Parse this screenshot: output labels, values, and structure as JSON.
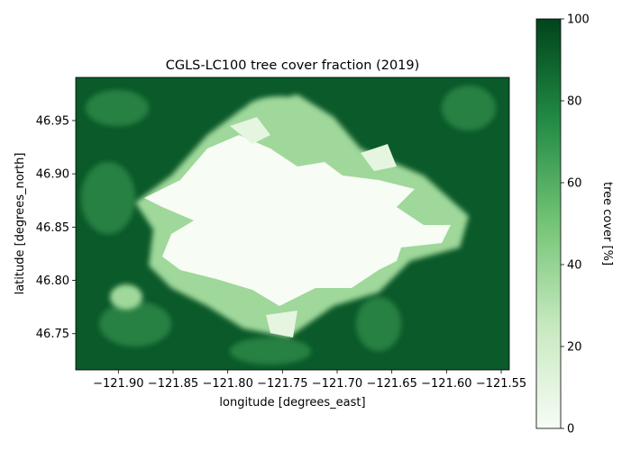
{
  "chart_data": {
    "type": "image",
    "title": "CGLS-LC100 tree cover fraction (2019)",
    "xlabel": "longitude [degrees_east]",
    "ylabel": "latitude [degrees_north]",
    "xlim": [
      -121.939,
      -121.5426
    ],
    "xticks": [
      {
        "value": -121.9,
        "label": "−121.90"
      },
      {
        "value": -121.85,
        "label": "−121.85"
      },
      {
        "value": -121.8,
        "label": "−121.80"
      },
      {
        "value": -121.75,
        "label": "−121.75"
      },
      {
        "value": -121.7,
        "label": "−121.70"
      },
      {
        "value": -121.65,
        "label": "−121.65"
      },
      {
        "value": -121.6,
        "label": "−121.60"
      },
      {
        "value": -121.55,
        "label": "−121.55"
      }
    ],
    "ylim": [
      46.716,
      46.9905
    ],
    "yticks": [
      46.75,
      {
        "value": 46.8,
        "label": "46.80"
      },
      46.85,
      {
        "value": 46.9,
        "label": "46.90"
      },
      46.95
    ],
    "colorbar": {
      "label": "tree cover [%]",
      "lim": [
        0,
        100
      ],
      "ticks": [
        0,
        20,
        40,
        60,
        80,
        100
      ],
      "colormap": [
        "#f7fcf5",
        "#c7e9c0",
        "#74c476",
        "#238b45",
        "#00441b"
      ]
    }
  }
}
